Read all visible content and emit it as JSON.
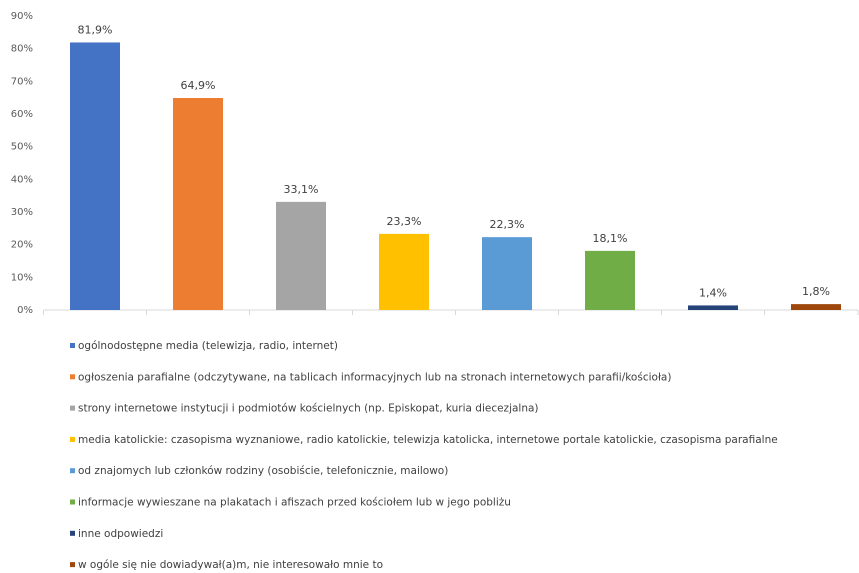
{
  "chart_data": {
    "type": "bar",
    "categories": [
      "ogólnodostępne media (telewizja, radio, internet)",
      "ogłoszenia parafialne (odczytywane, na tablicach informacyjnych lub na stronach internetowych parafii/kościoła)",
      "strony internetowe instytucji i podmiotów kościelnych (np. Episkopat, kuria diecezjalna)",
      "media katolickie: czasopisma wyznaniowe, radio katolickie, telewizja katolicka, internetowe portale katolickie, czasopisma parafialne",
      "od znajomych lub członków rodziny (osobiście, telefonicznie, mailowo)",
      "informacje wywieszane na plakatach i afiszach przed kościołem lub w jego pobliżu",
      "inne odpowiedzi",
      "w ogóle się nie dowiadywał(a)m, nie interesowało mnie to"
    ],
    "values": [
      81.9,
      64.9,
      33.1,
      23.3,
      22.3,
      18.1,
      1.4,
      1.8
    ],
    "value_labels": [
      "81,9%",
      "64,9%",
      "33,1%",
      "23,3%",
      "22,3%",
      "18,1%",
      "1,4%",
      "1,8%"
    ],
    "colors": [
      "#4472c4",
      "#ed7d31",
      "#a5a5a5",
      "#ffc000",
      "#5b9bd5",
      "#70ad47",
      "#264478",
      "#9e480e"
    ],
    "ylim": [
      0,
      90
    ],
    "yticks": [
      {
        "value": 0,
        "label": "0%"
      },
      {
        "value": 10,
        "label": "10%"
      },
      {
        "value": 20,
        "label": "20%"
      },
      {
        "value": 30,
        "label": "30%"
      },
      {
        "value": 40,
        "label": "40%"
      },
      {
        "value": 50,
        "label": "50%"
      },
      {
        "value": 60,
        "label": "60%"
      },
      {
        "value": 70,
        "label": "70%"
      },
      {
        "value": 80,
        "label": "80%"
      },
      {
        "value": 90,
        "label": "90%"
      }
    ],
    "grid": false,
    "legend": "bottom"
  }
}
